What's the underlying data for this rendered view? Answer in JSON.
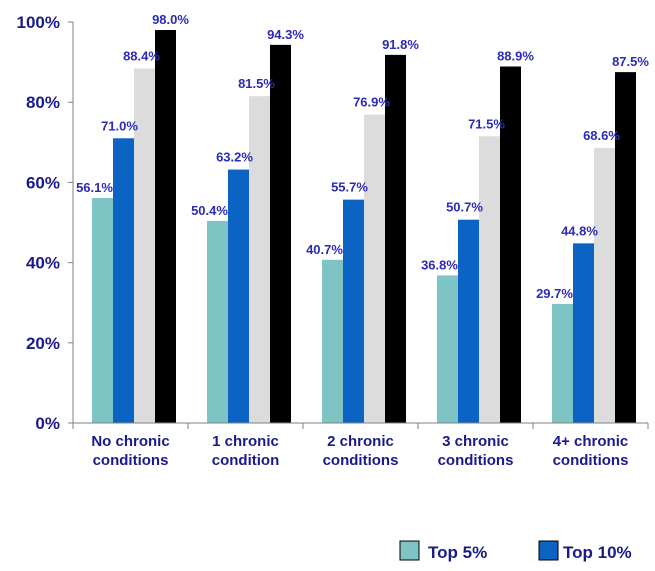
{
  "chart_data": {
    "type": "bar",
    "categories": [
      [
        "No chronic",
        "conditions"
      ],
      [
        "1 chronic",
        "condition"
      ],
      [
        "2 chronic",
        "conditions"
      ],
      [
        "3 chronic",
        "conditions"
      ],
      [
        "4+ chronic",
        "conditions"
      ]
    ],
    "series": [
      {
        "name": "Top 5%",
        "color": "#7fc4c4",
        "values": [
          56.1,
          50.4,
          40.7,
          36.8,
          29.7
        ],
        "labels": [
          "56.1%",
          "50.4%",
          "40.7%",
          "36.8%",
          "29.7%"
        ]
      },
      {
        "name": "Top 10%",
        "color": "#0b63c4",
        "values": [
          71.0,
          63.2,
          55.7,
          50.7,
          44.8
        ],
        "labels": [
          "71.0%",
          "63.2%",
          "55.7%",
          "50.7%",
          "44.8%"
        ]
      },
      {
        "color": "#dcdcdc",
        "values": [
          88.4,
          81.5,
          76.9,
          71.5,
          68.6
        ],
        "labels": [
          "88.4%",
          "81.5%",
          "76.9%",
          "71.5%",
          "68.6%"
        ]
      },
      {
        "color": "#000000",
        "values": [
          98.0,
          94.3,
          91.8,
          88.9,
          87.5
        ],
        "labels": [
          "98.0%",
          "94.3%",
          "91.8%",
          "88.9%",
          "87.5%"
        ]
      }
    ],
    "ylim": [
      0,
      100
    ],
    "yticks": [
      0,
      20,
      40,
      60,
      80,
      100
    ],
    "ytick_labels": [
      "0%",
      "20%",
      "40%",
      "60%",
      "80%",
      "100%"
    ],
    "grid": false,
    "legend_position": "bottom-right"
  }
}
